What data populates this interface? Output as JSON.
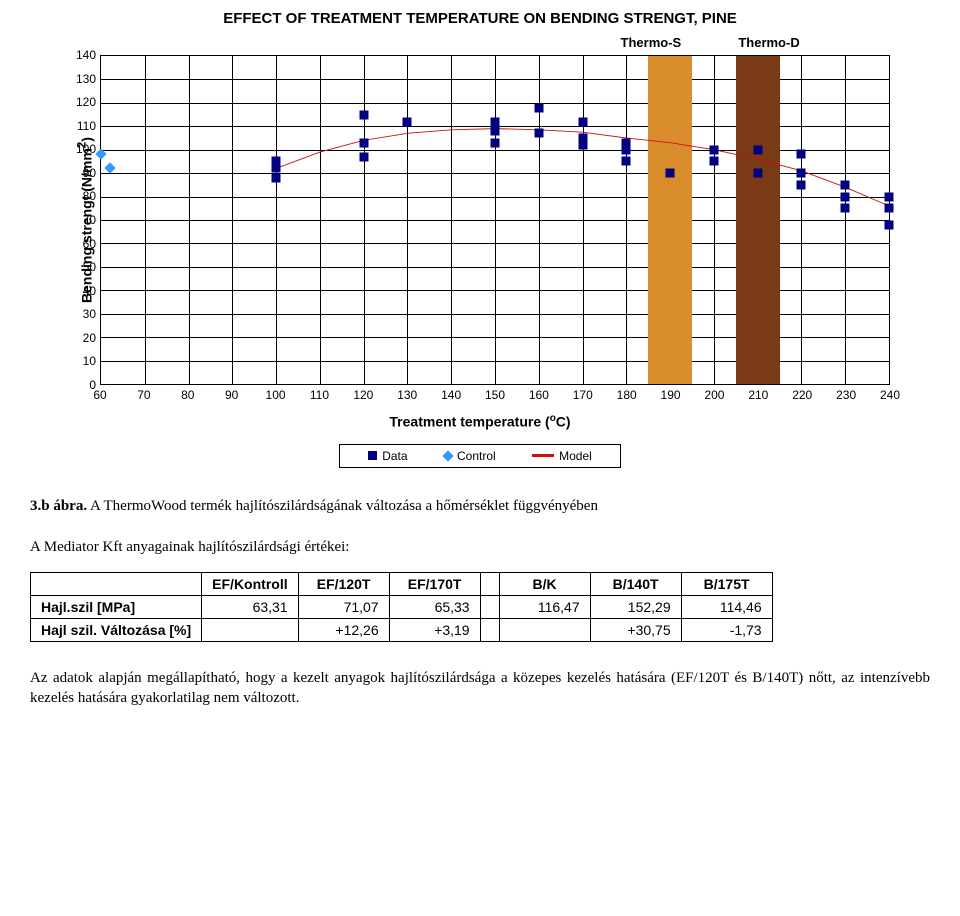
{
  "chart": {
    "title": "EFFECT OF TREATMENT TEMPERATURE ON BENDING STRENGT, PINE",
    "thermo_s_label": "Thermo-S",
    "thermo_d_label": "Thermo-D",
    "yaxis_label_prefix": "Bending strengt (N/mm",
    "yaxis_label_suffix": ")",
    "xaxis_label_prefix": "Treatment temperature (",
    "xaxis_label_suffix": "C)",
    "x_min": 60,
    "x_max": 240,
    "y_min": 0,
    "y_max": 140,
    "x_ticks": [
      60,
      70,
      80,
      90,
      100,
      110,
      120,
      130,
      140,
      150,
      160,
      170,
      180,
      190,
      200,
      210,
      220,
      230,
      240
    ],
    "y_ticks": [
      0,
      10,
      20,
      30,
      40,
      50,
      60,
      70,
      80,
      90,
      100,
      110,
      120,
      130,
      140
    ],
    "thermo_s_range": [
      185,
      195
    ],
    "thermo_d_range": [
      205,
      215
    ],
    "thermo_s_color": "#d98c2b",
    "thermo_d_color": "#7a3a15",
    "model_color": "#d01010",
    "data_color": "#000080",
    "control_color": "#3399ff",
    "data_points": [
      [
        100,
        95
      ],
      [
        100,
        88
      ],
      [
        100,
        92
      ],
      [
        120,
        97
      ],
      [
        120,
        103
      ],
      [
        120,
        115
      ],
      [
        130,
        112
      ],
      [
        150,
        108
      ],
      [
        150,
        112
      ],
      [
        150,
        103
      ],
      [
        160,
        107
      ],
      [
        160,
        118
      ],
      [
        170,
        102
      ],
      [
        170,
        105
      ],
      [
        170,
        112
      ],
      [
        180,
        103
      ],
      [
        180,
        100
      ],
      [
        180,
        95
      ],
      [
        190,
        90
      ],
      [
        200,
        95
      ],
      [
        200,
        100
      ],
      [
        210,
        90
      ],
      [
        210,
        100
      ],
      [
        220,
        85
      ],
      [
        220,
        90
      ],
      [
        220,
        98
      ],
      [
        230,
        75
      ],
      [
        230,
        85
      ],
      [
        230,
        80
      ],
      [
        240,
        68
      ],
      [
        240,
        75
      ],
      [
        240,
        80
      ]
    ],
    "control_points": [
      [
        60,
        98
      ],
      [
        62,
        92
      ]
    ],
    "model_curve": [
      [
        100,
        92
      ],
      [
        110,
        99
      ],
      [
        120,
        104
      ],
      [
        130,
        107
      ],
      [
        140,
        108.5
      ],
      [
        150,
        109
      ],
      [
        160,
        108.5
      ],
      [
        170,
        107.5
      ],
      [
        180,
        105
      ],
      [
        190,
        103
      ],
      [
        200,
        100
      ],
      [
        210,
        96
      ],
      [
        220,
        91
      ],
      [
        230,
        84
      ],
      [
        240,
        76
      ]
    ],
    "legend": {
      "data": "Data",
      "control": "Control",
      "model": "Model"
    }
  },
  "caption_bold": "3.b ábra.",
  "caption_rest": " A ThermoWood termék hajlítószilárdságának változása a hőmérséklet függvényében",
  "subheading": "A Mediator Kft anyagainak hajlítószilárdsági értékei:",
  "table": {
    "headers": [
      "EF/Kontroll",
      "EF/120T",
      "EF/170T",
      "B/K",
      "B/140T",
      "B/175T"
    ],
    "rows": [
      {
        "label": "Hajl.szil [MPa]",
        "a": [
          "63,31",
          "71,07",
          "65,33"
        ],
        "b": [
          "116,47",
          "152,29",
          "114,46"
        ]
      },
      {
        "label": "Hajl szil. Változása [%]",
        "a": [
          "",
          "+12,26",
          "+3,19"
        ],
        "b": [
          "",
          "+30,75",
          "-1,73"
        ]
      }
    ]
  },
  "paragraph": "Az adatok alapján megállapítható, hogy a kezelt anyagok hajlítószilárdsága a közepes kezelés hatására (EF/120T és B/140T) nőtt, az intenzívebb kezelés hatására gyakorlatilag nem változott."
}
